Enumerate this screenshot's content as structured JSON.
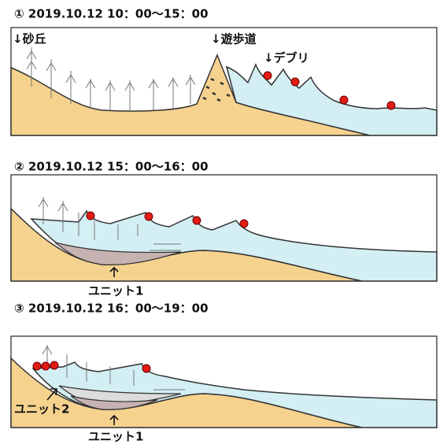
{
  "panels": [
    {
      "title": "①  2019.10.12   10：00～15：00",
      "labels": [
        "↓砂丘",
        "↓遊歩道",
        "↓デブリ"
      ]
    },
    {
      "title": "②  2019.10.12   15：00～16：00",
      "labels": [
        "ユニット1"
      ]
    },
    {
      "title": "③ 2019.10.12   16：00～19：00",
      "labels": [
        "ユニット2",
        "ユニット1"
      ]
    }
  ]
}
